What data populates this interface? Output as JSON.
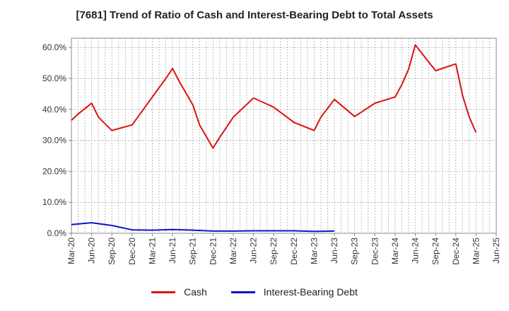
{
  "chart_data": {
    "type": "line",
    "title": "[7681]  Trend of Ratio of Cash and Interest-Bearing Debt to Total Assets",
    "xlabel": "",
    "ylabel": "",
    "ylim": [
      0,
      63
    ],
    "y_ticks": [
      0,
      10,
      20,
      30,
      40,
      50,
      60
    ],
    "y_tick_labels": [
      "0.0%",
      "10.0%",
      "20.0%",
      "30.0%",
      "40.0%",
      "50.0%",
      "60.0%"
    ],
    "x_tick_labels": [
      "Mar-20",
      "Jun-20",
      "Sep-20",
      "Dec-20",
      "Mar-21",
      "Jun-21",
      "Sep-21",
      "Dec-21",
      "Mar-22",
      "Jun-22",
      "Sep-22",
      "Dec-22",
      "Mar-23",
      "Jun-23",
      "Sep-23",
      "Dec-23",
      "Mar-24",
      "Jun-24",
      "Sep-24",
      "Dec-24",
      "Mar-25",
      "Jun-25"
    ],
    "categories": [
      "Mar-20",
      "Apr-20",
      "May-20",
      "Jun-20",
      "Jul-20",
      "Aug-20",
      "Sep-20",
      "Oct-20",
      "Nov-20",
      "Dec-20",
      "Jan-21",
      "Feb-21",
      "Mar-21",
      "Apr-21",
      "May-21",
      "Jun-21",
      "Jul-21",
      "Aug-21",
      "Sep-21",
      "Oct-21",
      "Nov-21",
      "Dec-21",
      "Jan-22",
      "Feb-22",
      "Mar-22",
      "Apr-22",
      "May-22",
      "Jun-22",
      "Jul-22",
      "Aug-22",
      "Sep-22",
      "Oct-22",
      "Nov-22",
      "Dec-22",
      "Jan-23",
      "Feb-23",
      "Mar-23",
      "Apr-23",
      "May-23",
      "Jun-23",
      "Jul-23",
      "Aug-23",
      "Sep-23",
      "Oct-23",
      "Nov-23",
      "Dec-23",
      "Jan-24",
      "Feb-24",
      "Mar-24",
      "Apr-24",
      "May-24",
      "Jun-24",
      "Jul-24",
      "Aug-24",
      "Sep-24",
      "Oct-24",
      "Nov-24",
      "Dec-24",
      "Jan-25",
      "Feb-25",
      "Mar-25",
      "Apr-25",
      "May-25",
      "Jun-25"
    ],
    "series": [
      {
        "name": "Cash",
        "color": "#dd1111",
        "points": [
          [
            0,
            36.5
          ],
          [
            1,
            38.5
          ],
          [
            3,
            42
          ],
          [
            4,
            37.5
          ],
          [
            6,
            33.2
          ],
          [
            9,
            35
          ],
          [
            12,
            44
          ],
          [
            13,
            47
          ],
          [
            14,
            50
          ],
          [
            15,
            53.2
          ],
          [
            16,
            49
          ],
          [
            18,
            41.5
          ],
          [
            19,
            35
          ],
          [
            21,
            27.5
          ],
          [
            22,
            31
          ],
          [
            24,
            37.5
          ],
          [
            27,
            43.7
          ],
          [
            30,
            40.7
          ],
          [
            33,
            35.8
          ],
          [
            36,
            33.2
          ],
          [
            37,
            37.5
          ],
          [
            39,
            43.2
          ],
          [
            42,
            37.7
          ],
          [
            45,
            42
          ],
          [
            48,
            44
          ],
          [
            49,
            48
          ],
          [
            50,
            53
          ],
          [
            51,
            60.8
          ],
          [
            52,
            58
          ],
          [
            54,
            52.5
          ],
          [
            57,
            54.7
          ],
          [
            58,
            44.5
          ],
          [
            59,
            37.5
          ],
          [
            60,
            32.5
          ]
        ]
      },
      {
        "name": "Interest-Bearing Debt",
        "color": "#1111cc",
        "points": [
          [
            0,
            2.8
          ],
          [
            3,
            3.4
          ],
          [
            6,
            2.5
          ],
          [
            9,
            1.1
          ],
          [
            12,
            1.0
          ],
          [
            15,
            1.2
          ],
          [
            18,
            1.0
          ],
          [
            21,
            0.7
          ],
          [
            24,
            0.7
          ],
          [
            27,
            0.8
          ],
          [
            30,
            0.8
          ],
          [
            33,
            0.8
          ],
          [
            36,
            0.6
          ],
          [
            39,
            0.7
          ]
        ]
      }
    ],
    "legend": [
      "Cash",
      "Interest-Bearing Debt"
    ],
    "legend_position": "bottom-center",
    "grid": true
  }
}
